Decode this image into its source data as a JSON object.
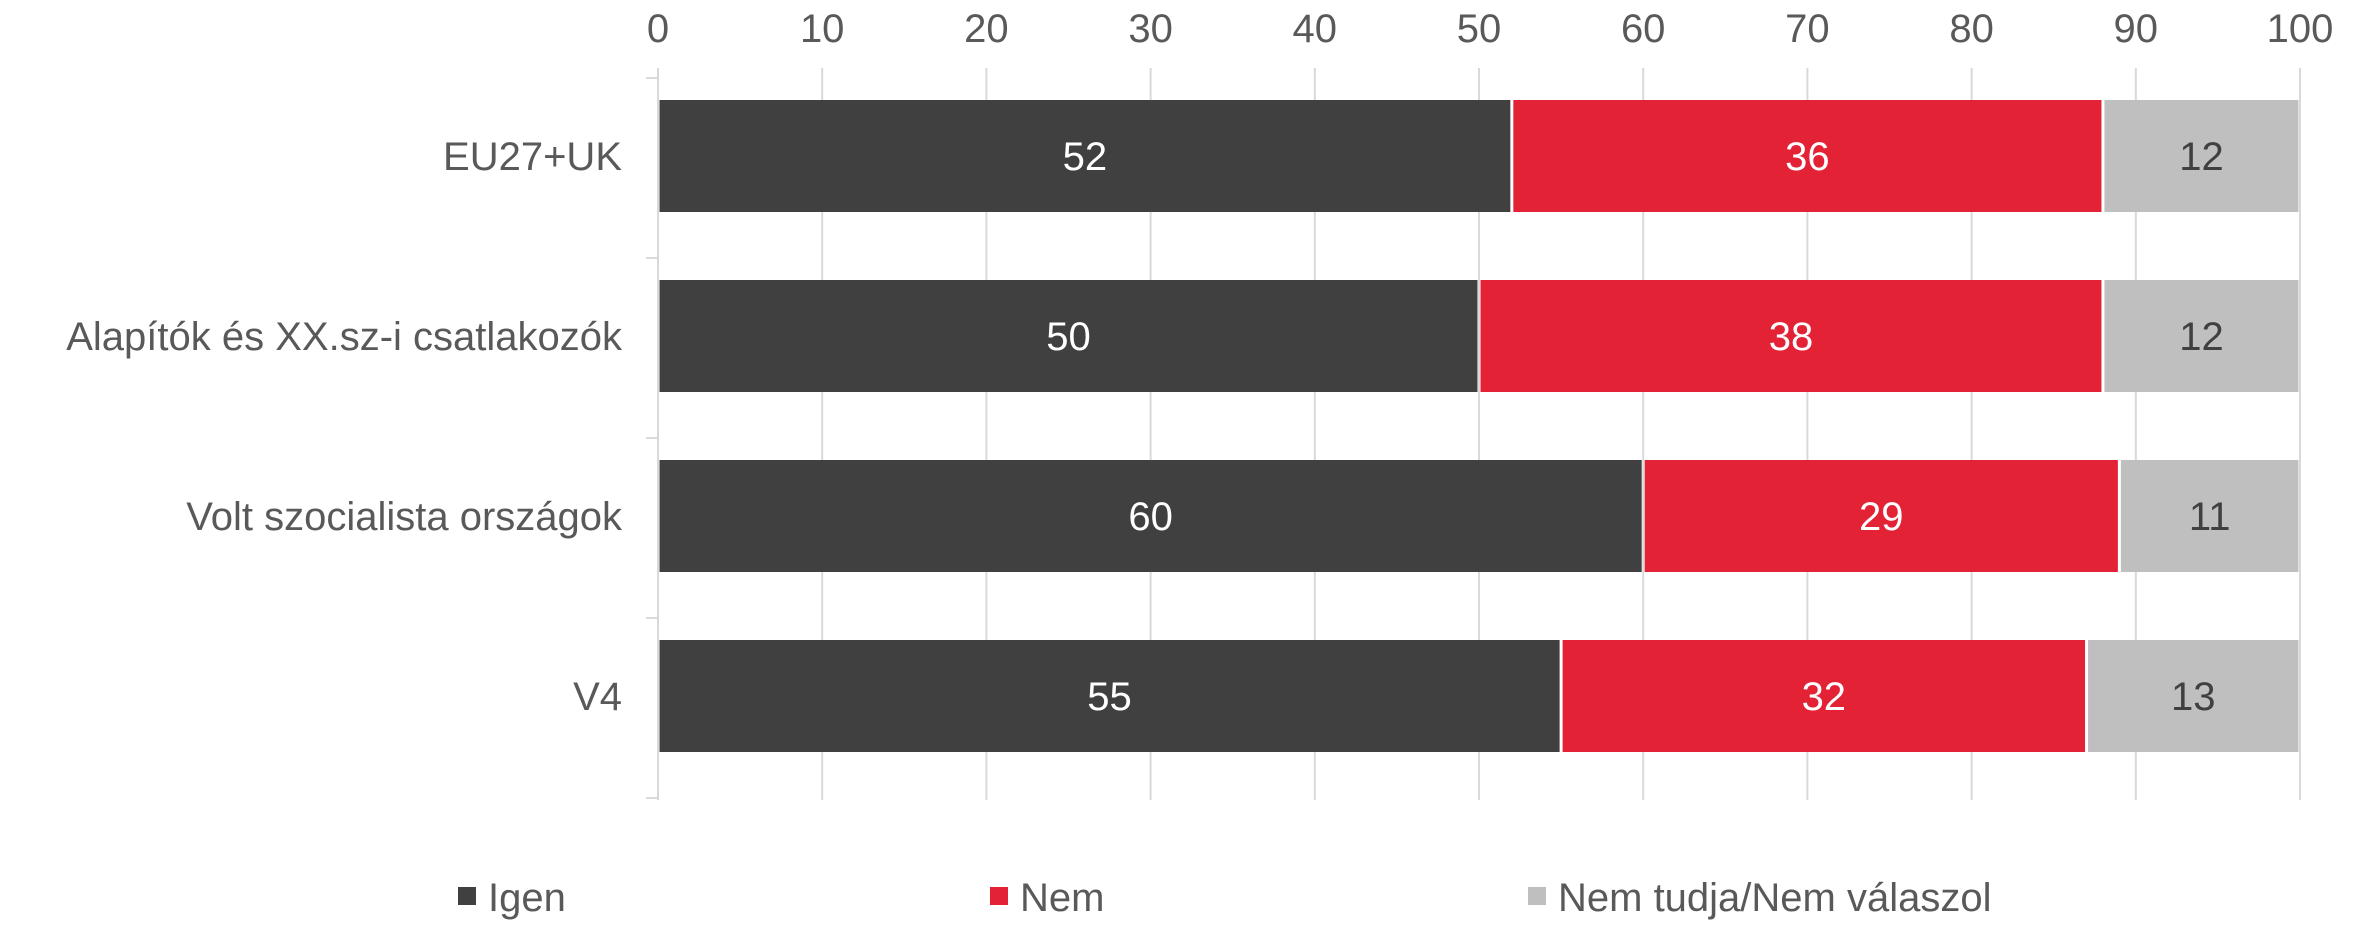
{
  "chart_data": {
    "type": "bar",
    "orientation": "horizontal",
    "stacked": true,
    "categories": [
      "EU27+UK",
      "Alapítók és XX.sz-i csatlakozók",
      "Volt szocialista országok",
      "V4"
    ],
    "series": [
      {
        "name": "Igen",
        "values": [
          52,
          50,
          60,
          55
        ],
        "color": "#404040",
        "label_color": "#ffffff"
      },
      {
        "name": "Nem",
        "values": [
          36,
          38,
          29,
          32
        ],
        "color": "#e32236",
        "label_color": "#ffffff"
      },
      {
        "name": "Nem tudja/Nem válaszol",
        "values": [
          12,
          12,
          11,
          13
        ],
        "color": "#bfbfbf",
        "label_color": "#404040"
      }
    ],
    "xlim": [
      0,
      100
    ],
    "xticks": [
      "0",
      "10",
      "20",
      "30",
      "40",
      "50",
      "60",
      "70",
      "80",
      "90",
      "100"
    ],
    "x_axis_position": "top",
    "grid": true,
    "legend_position": "bottom",
    "title": "",
    "xlabel": "",
    "ylabel": ""
  }
}
